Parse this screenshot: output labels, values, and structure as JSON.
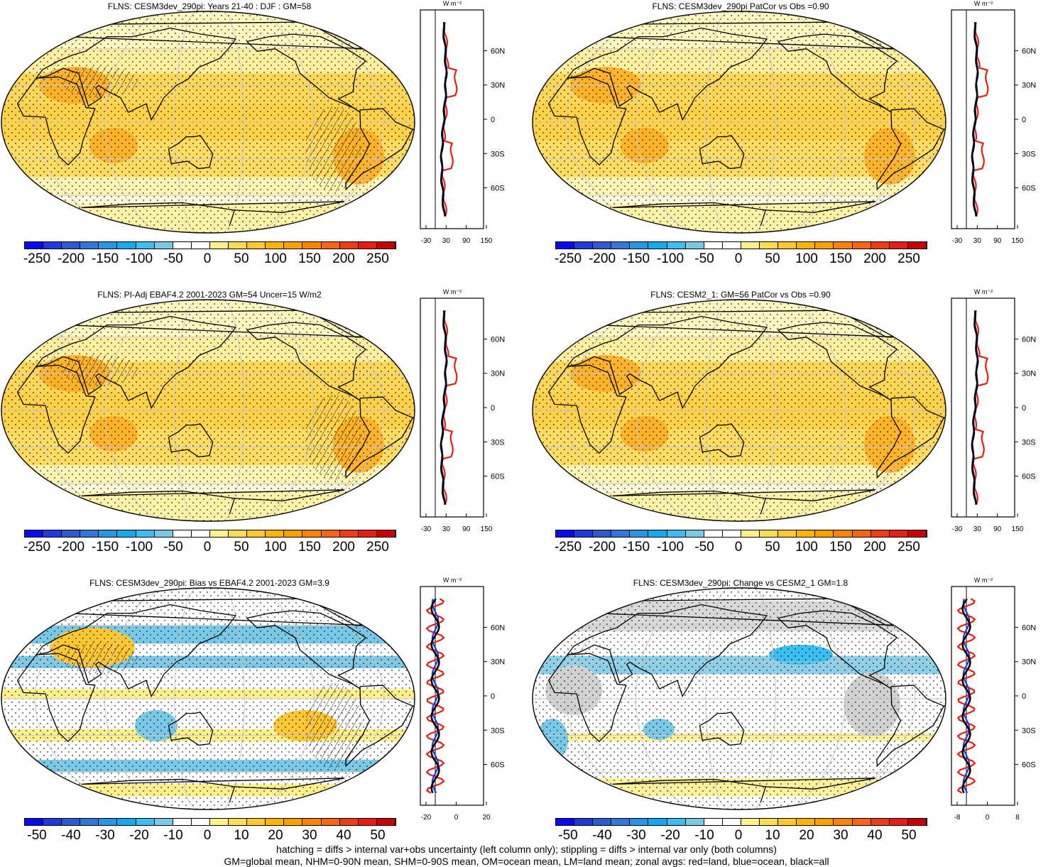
{
  "panels": [
    {
      "title": "FLNS: CESM3dev_290pi: Years 21-40 : DJF : GM=58",
      "scale": "main",
      "zonal": "main",
      "hatch": true
    },
    {
      "title": "FLNS: CESM3dev_290pi PatCor vs Obs =0.90",
      "scale": "main",
      "zonal": "main",
      "hatch": false
    },
    {
      "title": "FLNS: PI-Adj EBAF4.2 2001-2023 GM=54 Uncer=15 W/m2",
      "scale": "main",
      "zonal": "main",
      "hatch": true
    },
    {
      "title": "FLNS: CESM2_1: GM=56 PatCor vs Obs =0.90",
      "scale": "main",
      "zonal": "main",
      "hatch": false
    },
    {
      "title": "FLNS: CESM3dev_290pi: Bias vs EBAF4.2 2001-2023 GM=3.9",
      "scale": "diff",
      "zonal": "bias",
      "hatch": true
    },
    {
      "title": "FLNS: CESM3dev_290pi: Change vs CESM2_1 GM=1.8",
      "scale": "diff",
      "zonal": "change",
      "hatch": false
    }
  ],
  "colorbars": {
    "main": {
      "labels": [
        "-250",
        "-200",
        "-150",
        "-100",
        "-50",
        "0",
        "50",
        "100",
        "150",
        "200",
        "250"
      ]
    },
    "diff": {
      "labels": [
        "-50",
        "-40",
        "-30",
        "-20",
        "-10",
        "0",
        "10",
        "20",
        "30",
        "40",
        "50"
      ]
    }
  },
  "colors": [
    "#0a0af0",
    "#1e3cdc",
    "#2d5ad2",
    "#3278dc",
    "#2896e6",
    "#14aaf0",
    "#3cbef0",
    "#78c8e6",
    "#ffffff",
    "#ffffff",
    "#fff08c",
    "#ffdc50",
    "#ffc832",
    "#ffb400",
    "#ffa000",
    "#ff8200",
    "#ff6414",
    "#f03c14",
    "#e61e14",
    "#c80000"
  ],
  "zonal": {
    "unit": "W m⁻²",
    "lat_labels": [
      "60N",
      "30N",
      "0",
      "30S",
      "60S"
    ],
    "main_ticks": [
      "-30",
      "30",
      "90",
      "150"
    ],
    "bias_ticks": [
      "-20",
      "0",
      "20"
    ],
    "change_ticks": [
      "-8",
      "0",
      "8"
    ]
  },
  "footer": {
    "line1": "hatching = diffs > internal var+obs uncertainty (left column only); stippling = diffs > internal var only (both columns)",
    "line2": "GM=global mean, NHM=0-90N mean, SHM=0-90S mean, OM=ocean mean, LM=land mean; zonal avgs: red=land, blue=ocean, black=all"
  }
}
